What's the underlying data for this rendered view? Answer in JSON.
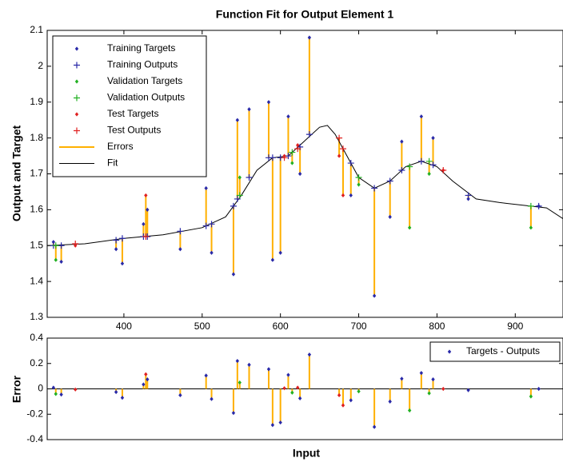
{
  "chart_data": [
    {
      "type": "fit",
      "title": "Function Fit for Output Element 1",
      "y_label": "Output and Target",
      "xlim": [
        302,
        961
      ],
      "ylim": [
        1.3,
        2.1
      ],
      "xticks": [
        400,
        500,
        600,
        700,
        800,
        900
      ],
      "yticks": [
        1.3,
        1.4,
        1.5,
        1.6,
        1.7,
        1.8,
        1.9,
        2,
        2.1
      ],
      "grid": false,
      "legend": "upper left",
      "series": [
        {
          "name": "Training Targets",
          "marker": "dot",
          "color": "#2929a8",
          "x": [
            310,
            320,
            390,
            398,
            425,
            430,
            472,
            505,
            512,
            540,
            545,
            560,
            585,
            590,
            600,
            610,
            625,
            637,
            690,
            720,
            740,
            755,
            780,
            795,
            840,
            930
          ],
          "values": [
            1.51,
            1.455,
            1.49,
            1.45,
            1.56,
            1.6,
            1.49,
            1.66,
            1.48,
            1.42,
            1.85,
            1.88,
            1.9,
            1.46,
            1.48,
            1.86,
            1.7,
            2.08,
            1.64,
            1.36,
            1.58,
            1.79,
            1.86,
            1.8,
            1.63,
            1.61
          ]
        },
        {
          "name": "Training Outputs",
          "marker": "plus",
          "color": "#2929a8",
          "x": [
            310,
            320,
            390,
            398,
            425,
            430,
            472,
            505,
            512,
            540,
            545,
            560,
            585,
            590,
            600,
            610,
            625,
            637,
            690,
            720,
            740,
            755,
            780,
            795,
            840,
            930
          ],
          "values": [
            1.5,
            1.5,
            1.515,
            1.52,
            1.525,
            1.525,
            1.54,
            1.555,
            1.56,
            1.61,
            1.63,
            1.69,
            1.745,
            1.745,
            1.745,
            1.75,
            1.775,
            1.81,
            1.73,
            1.66,
            1.68,
            1.71,
            1.735,
            1.725,
            1.64,
            1.61
          ]
        },
        {
          "name": "Validation Targets",
          "marker": "dot",
          "color": "#22b022",
          "x": [
            313,
            548,
            615,
            700,
            765,
            790,
            920
          ],
          "values": [
            1.46,
            1.69,
            1.73,
            1.67,
            1.55,
            1.7,
            1.55
          ]
        },
        {
          "name": "Validation Outputs",
          "marker": "plus",
          "color": "#22b022",
          "x": [
            313,
            548,
            615,
            700,
            765,
            790,
            920
          ],
          "values": [
            1.5,
            1.64,
            1.76,
            1.69,
            1.72,
            1.735,
            1.61
          ]
        },
        {
          "name": "Test Targets",
          "marker": "dot",
          "color": "#e02020",
          "x": [
            338,
            428,
            605,
            622,
            675,
            680,
            808
          ],
          "values": [
            1.5,
            1.64,
            1.75,
            1.78,
            1.75,
            1.64,
            1.71
          ]
        },
        {
          "name": "Test Outputs",
          "marker": "plus",
          "color": "#e02020",
          "x": [
            338,
            428,
            605,
            622,
            675,
            680,
            808
          ],
          "values": [
            1.505,
            1.525,
            1.745,
            1.77,
            1.8,
            1.77,
            1.71
          ]
        },
        {
          "name": "Errors",
          "marker": "stem",
          "color": "#ffb000"
        },
        {
          "name": "Fit",
          "marker": "line",
          "color": "#000000",
          "x": [
            302,
            350,
            400,
            450,
            500,
            530,
            550,
            570,
            590,
            610,
            630,
            650,
            660,
            670,
            680,
            700,
            720,
            740,
            760,
            780,
            800,
            820,
            850,
            880,
            920,
            940,
            961
          ],
          "values": [
            1.5,
            1.505,
            1.52,
            1.53,
            1.55,
            1.58,
            1.64,
            1.71,
            1.745,
            1.75,
            1.79,
            1.83,
            1.835,
            1.81,
            1.77,
            1.69,
            1.66,
            1.68,
            1.72,
            1.735,
            1.72,
            1.68,
            1.63,
            1.62,
            1.61,
            1.605,
            1.575
          ]
        }
      ]
    },
    {
      "type": "error",
      "y_label": "Error",
      "x_label": "Input",
      "xlim": [
        302,
        961
      ],
      "ylim": [
        -0.4,
        0.4
      ],
      "yticks": [
        -0.4,
        -0.2,
        0,
        0.2,
        0.4
      ],
      "legend": "upper right",
      "stem_color": "#ffb000",
      "series": [
        {
          "name": "Targets - Outputs",
          "color": "#2929a8",
          "x": [
            310,
            320,
            390,
            398,
            425,
            430,
            472,
            505,
            512,
            540,
            545,
            560,
            585,
            590,
            600,
            610,
            625,
            637,
            690,
            720,
            740,
            755,
            780,
            795,
            840,
            930
          ],
          "values": [
            0.01,
            -0.045,
            -0.025,
            -0.07,
            0.035,
            0.075,
            -0.05,
            0.105,
            -0.08,
            -0.19,
            0.22,
            0.19,
            0.155,
            -0.285,
            -0.265,
            0.11,
            -0.075,
            0.27,
            -0.09,
            -0.3,
            -0.1,
            0.08,
            0.125,
            0.075,
            -0.01,
            0
          ]
        },
        {
          "color": "#22b022",
          "x": [
            313,
            548,
            615,
            700,
            765,
            790,
            920
          ],
          "values": [
            -0.04,
            0.05,
            -0.03,
            -0.02,
            -0.17,
            -0.035,
            -0.06
          ]
        },
        {
          "color": "#e02020",
          "x": [
            338,
            428,
            605,
            622,
            675,
            680,
            808
          ],
          "values": [
            -0.005,
            0.115,
            0.005,
            0.01,
            -0.05,
            -0.13,
            0
          ]
        }
      ]
    }
  ]
}
